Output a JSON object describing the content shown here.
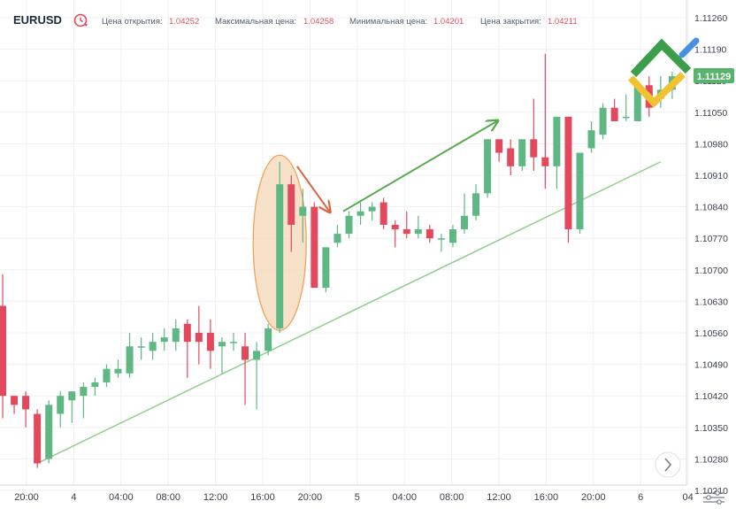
{
  "header": {
    "symbol": "EURUSD",
    "open_label": "Цена открытия:",
    "open_value": "1.04252",
    "high_label": "Максимальная цена:",
    "high_value": "1.04258",
    "low_label": "Минимальная цена:",
    "low_value": "1.04201",
    "close_label": "Цена закрытия:",
    "close_value": "1.04211"
  },
  "colors": {
    "up": "#5fb884",
    "down": "#e2495c",
    "trendline": "#8fcf8a",
    "arrow_up": "#54a94a",
    "arrow_down": "#d9653f",
    "ellipse_fill": "#f6d9bb",
    "ellipse_stroke": "#f0a25a",
    "price_tag": "#58b36c",
    "logo_green": "#3a9e4a",
    "logo_yellow": "#f1c232",
    "logo_blue": "#4a90e2"
  },
  "price_tag": "1.11129",
  "icons": [
    "clock-reset-icon",
    "chevron-right-icon",
    "chart-settings-icon",
    "company-logo"
  ],
  "chart_data": {
    "type": "candlestick",
    "y_ticks": [
      "1.11260",
      "1.11190",
      "1.11120",
      "1.11050",
      "1.10980",
      "1.10910",
      "1.10840",
      "1.10770",
      "1.10700",
      "1.10630",
      "1.10560",
      "1.10490",
      "1.10420",
      "1.10350",
      "1.10280",
      "1.10210"
    ],
    "x_ticks": [
      "20:00",
      "4",
      "04:00",
      "08:00",
      "12:00",
      "16:00",
      "20:00",
      "5",
      "04:00",
      "08:00",
      "12:00",
      "16:00",
      "20:00",
      "6",
      "04"
    ],
    "ylim": [
      1.1019,
      1.113
    ],
    "candles": [
      {
        "o": 1.1062,
        "h": 1.1069,
        "l": 1.1037,
        "c": 1.1042
      },
      {
        "o": 1.1042,
        "h": 1.1042,
        "l": 1.1038,
        "c": 1.104
      },
      {
        "o": 1.1042,
        "h": 1.1043,
        "l": 1.1035,
        "c": 1.1039
      },
      {
        "o": 1.1038,
        "h": 1.1039,
        "l": 1.1026,
        "c": 1.1027
      },
      {
        "o": 1.1028,
        "h": 1.1041,
        "l": 1.1027,
        "c": 1.104
      },
      {
        "o": 1.1038,
        "h": 1.1043,
        "l": 1.1035,
        "c": 1.1042
      },
      {
        "o": 1.1041,
        "h": 1.1043,
        "l": 1.1036,
        "c": 1.1043
      },
      {
        "o": 1.1042,
        "h": 1.1045,
        "l": 1.1037,
        "c": 1.1044
      },
      {
        "o": 1.1044,
        "h": 1.1046,
        "l": 1.1042,
        "c": 1.1045
      },
      {
        "o": 1.1045,
        "h": 1.1049,
        "l": 1.1044,
        "c": 1.1048
      },
      {
        "o": 1.1047,
        "h": 1.105,
        "l": 1.1046,
        "c": 1.1048
      },
      {
        "o": 1.1047,
        "h": 1.1056,
        "l": 1.1046,
        "c": 1.1053
      },
      {
        "o": 1.1053,
        "h": 1.1055,
        "l": 1.105,
        "c": 1.1053
      },
      {
        "o": 1.1052,
        "h": 1.1056,
        "l": 1.105,
        "c": 1.1054
      },
      {
        "o": 1.1054,
        "h": 1.1057,
        "l": 1.1052,
        "c": 1.1055
      },
      {
        "o": 1.1054,
        "h": 1.1059,
        "l": 1.1052,
        "c": 1.1057
      },
      {
        "o": 1.1058,
        "h": 1.1059,
        "l": 1.1046,
        "c": 1.1054
      },
      {
        "o": 1.1056,
        "h": 1.1062,
        "l": 1.1049,
        "c": 1.1054
      },
      {
        "o": 1.1056,
        "h": 1.1059,
        "l": 1.1048,
        "c": 1.1052
      },
      {
        "o": 1.1053,
        "h": 1.1055,
        "l": 1.1047,
        "c": 1.1054
      },
      {
        "o": 1.1054,
        "h": 1.1056,
        "l": 1.1052,
        "c": 1.1054
      },
      {
        "o": 1.1053,
        "h": 1.1056,
        "l": 1.104,
        "c": 1.105
      },
      {
        "o": 1.105,
        "h": 1.1054,
        "l": 1.1039,
        "c": 1.1052
      },
      {
        "o": 1.1052,
        "h": 1.1058,
        "l": 1.1051,
        "c": 1.1057
      },
      {
        "o": 1.1057,
        "h": 1.1094,
        "l": 1.1056,
        "c": 1.1089
      },
      {
        "o": 1.1089,
        "h": 1.1091,
        "l": 1.1074,
        "c": 1.108
      },
      {
        "o": 1.1082,
        "h": 1.1088,
        "l": 1.1076,
        "c": 1.1084
      },
      {
        "o": 1.1084,
        "h": 1.1085,
        "l": 1.1066,
        "c": 1.1066
      },
      {
        "o": 1.1066,
        "h": 1.1075,
        "l": 1.1065,
        "c": 1.1075
      },
      {
        "o": 1.1076,
        "h": 1.108,
        "l": 1.1075,
        "c": 1.1078
      },
      {
        "o": 1.1078,
        "h": 1.1083,
        "l": 1.1077,
        "c": 1.1082
      },
      {
        "o": 1.1082,
        "h": 1.1085,
        "l": 1.108,
        "c": 1.1083
      },
      {
        "o": 1.1083,
        "h": 1.1085,
        "l": 1.1081,
        "c": 1.1084
      },
      {
        "o": 1.1085,
        "h": 1.1086,
        "l": 1.1079,
        "c": 1.108
      },
      {
        "o": 1.108,
        "h": 1.1081,
        "l": 1.1075,
        "c": 1.1079
      },
      {
        "o": 1.1079,
        "h": 1.1083,
        "l": 1.1077,
        "c": 1.1078
      },
      {
        "o": 1.1078,
        "h": 1.1082,
        "l": 1.1077,
        "c": 1.1079
      },
      {
        "o": 1.1079,
        "h": 1.108,
        "l": 1.1076,
        "c": 1.1077
      },
      {
        "o": 1.1077,
        "h": 1.1078,
        "l": 1.1074,
        "c": 1.1077
      },
      {
        "o": 1.1076,
        "h": 1.108,
        "l": 1.1075,
        "c": 1.1079
      },
      {
        "o": 1.1079,
        "h": 1.1087,
        "l": 1.1078,
        "c": 1.1082
      },
      {
        "o": 1.1082,
        "h": 1.1089,
        "l": 1.1081,
        "c": 1.1087
      },
      {
        "o": 1.1087,
        "h": 1.1099,
        "l": 1.1086,
        "c": 1.1099
      },
      {
        "o": 1.1099,
        "h": 1.1099,
        "l": 1.1094,
        "c": 1.1096
      },
      {
        "o": 1.1097,
        "h": 1.1099,
        "l": 1.1091,
        "c": 1.1093
      },
      {
        "o": 1.1093,
        "h": 1.1099,
        "l": 1.1092,
        "c": 1.1099
      },
      {
        "o": 1.1099,
        "h": 1.1108,
        "l": 1.1092,
        "c": 1.1095
      },
      {
        "o": 1.1095,
        "h": 1.1118,
        "l": 1.1088,
        "c": 1.1093
      },
      {
        "o": 1.1093,
        "h": 1.1104,
        "l": 1.1088,
        "c": 1.1104
      },
      {
        "o": 1.1104,
        "h": 1.1104,
        "l": 1.1076,
        "c": 1.1079
      },
      {
        "o": 1.1079,
        "h": 1.1096,
        "l": 1.1078,
        "c": 1.1096
      },
      {
        "o": 1.1097,
        "h": 1.1103,
        "l": 1.1096,
        "c": 1.1101
      },
      {
        "o": 1.11,
        "h": 1.1107,
        "l": 1.1099,
        "c": 1.1106
      },
      {
        "o": 1.1106,
        "h": 1.1108,
        "l": 1.1103,
        "c": 1.1103
      },
      {
        "o": 1.1104,
        "h": 1.1109,
        "l": 1.1103,
        "c": 1.1104
      },
      {
        "o": 1.1103,
        "h": 1.1112,
        "l": 1.1103,
        "c": 1.1111
      },
      {
        "o": 1.1111,
        "h": 1.1113,
        "l": 1.1104,
        "c": 1.1106
      },
      {
        "o": 1.1108,
        "h": 1.1113,
        "l": 1.1106,
        "c": 1.111
      },
      {
        "o": 1.111,
        "h": 1.1114,
        "l": 1.1108,
        "c": 1.1113
      }
    ],
    "trendline": {
      "from": 1.1027,
      "to": 1.1094
    },
    "arrow_down": {
      "from": 1.1093,
      "to": 1.1083
    },
    "arrow_up": {
      "from": 1.1083,
      "to": 1.1103
    },
    "grid": true,
    "legend": "none"
  }
}
